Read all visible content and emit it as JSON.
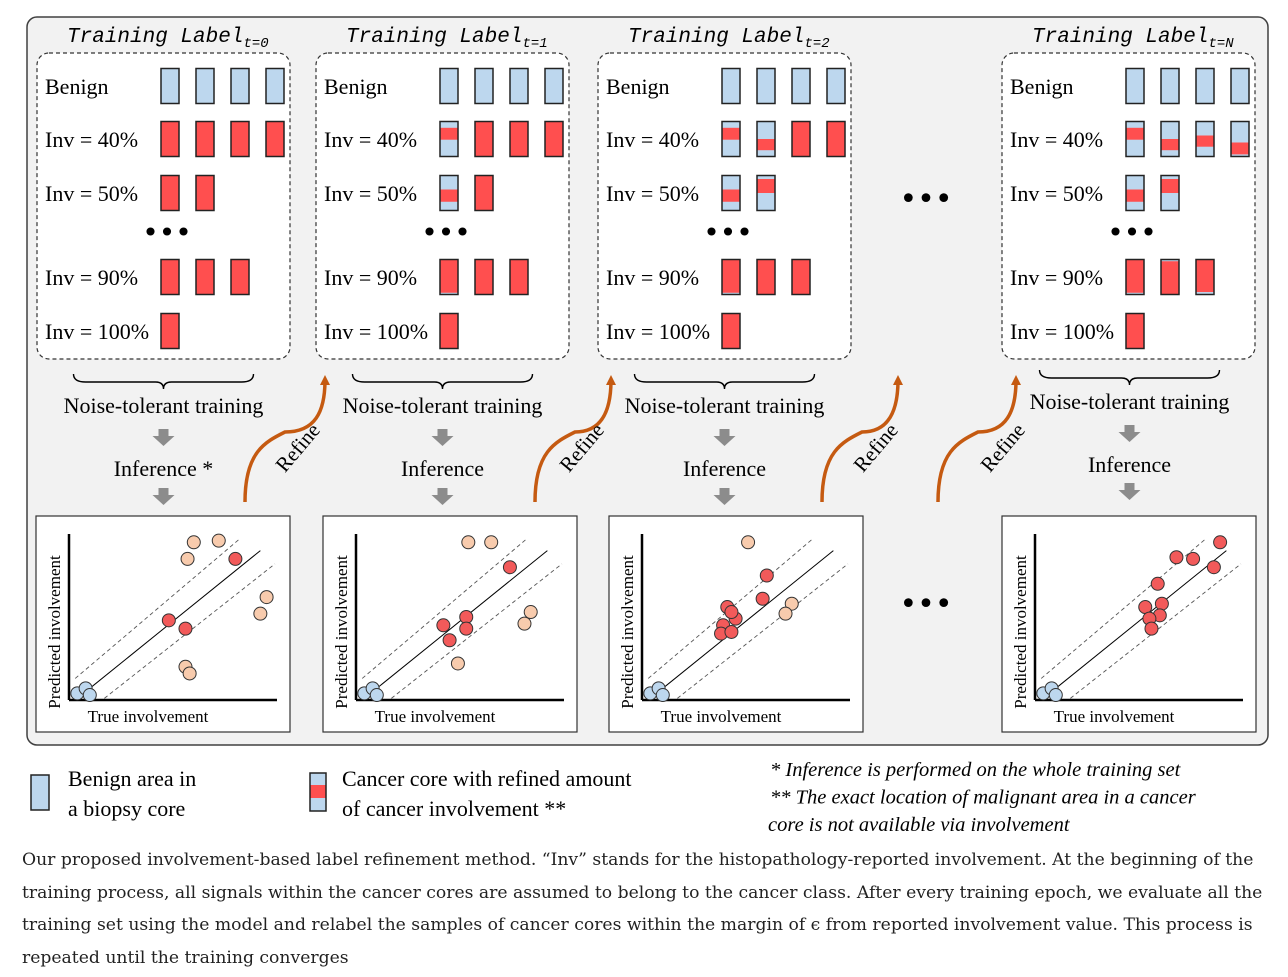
{
  "panels": [
    {
      "title": "Training Label",
      "title_sub": "t=0",
      "rows": [
        {
          "label": "Benign",
          "blocks": [
            [
              "b"
            ],
            [
              "b"
            ],
            [
              "b"
            ],
            [
              "b"
            ]
          ]
        },
        {
          "label": "Inv = 40%",
          "blocks": [
            [
              "r"
            ],
            [
              "r"
            ],
            [
              "r"
            ],
            [
              "r"
            ]
          ]
        },
        {
          "label": "Inv = 50%",
          "blocks": [
            [
              "r"
            ],
            [
              "r"
            ]
          ]
        },
        {
          "label": "dots"
        },
        {
          "label": "Inv = 90%",
          "blocks": [
            [
              "r"
            ],
            [
              "r"
            ],
            [
              "r"
            ]
          ]
        },
        {
          "label": "Inv = 100%",
          "blocks": [
            [
              "r"
            ]
          ]
        }
      ],
      "training": "Noise-tolerant training",
      "inference": "Inference *",
      "refine": "Refine",
      "plot": {
        "xlabel": "True involvement",
        "ylabel": "Predicted involvement",
        "benign": [
          [
            0.04,
            0.04
          ],
          [
            0.08,
            0.07
          ],
          [
            0.1,
            0.03
          ]
        ],
        "red": [
          [
            0.8,
            0.85
          ],
          [
            0.48,
            0.48
          ],
          [
            0.56,
            0.43
          ]
        ],
        "noisy": [
          [
            0.6,
            0.95
          ],
          [
            0.72,
            0.96
          ],
          [
            0.57,
            0.85
          ],
          [
            0.95,
            0.62
          ],
          [
            0.92,
            0.52
          ],
          [
            0.56,
            0.2
          ],
          [
            0.58,
            0.16
          ]
        ]
      }
    },
    {
      "title": "Training Label",
      "title_sub": "t=1",
      "rows": [
        {
          "label": "Benign",
          "blocks": [
            [
              "b"
            ],
            [
              "b"
            ],
            [
              "b"
            ],
            [
              "b"
            ]
          ]
        },
        {
          "label": "Inv = 40%",
          "blocks": [
            [
              "s",
              0.18,
              0.52
            ],
            [
              "r"
            ],
            [
              "r"
            ],
            [
              "r"
            ]
          ]
        },
        {
          "label": "Inv = 50%",
          "blocks": [
            [
              "s",
              0.4,
              0.75
            ],
            [
              "r"
            ]
          ]
        },
        {
          "label": "dots"
        },
        {
          "label": "Inv = 90%",
          "blocks": [
            [
              "s",
              0.0,
              0.95
            ],
            [
              "r"
            ],
            [
              "r"
            ]
          ]
        },
        {
          "label": "Inv = 100%",
          "blocks": [
            [
              "r"
            ]
          ]
        }
      ],
      "training": "Noise-tolerant training",
      "inference": "Inference",
      "refine": "Refine",
      "plot": {
        "xlabel": "True involvement",
        "ylabel": "Predicted involvement",
        "benign": [
          [
            0.04,
            0.04
          ],
          [
            0.08,
            0.07
          ],
          [
            0.1,
            0.03
          ]
        ],
        "red": [
          [
            0.74,
            0.8
          ],
          [
            0.53,
            0.5
          ],
          [
            0.42,
            0.45
          ],
          [
            0.53,
            0.43
          ],
          [
            0.45,
            0.36
          ]
        ],
        "noisy": [
          [
            0.54,
            0.95
          ],
          [
            0.65,
            0.95
          ],
          [
            0.84,
            0.53
          ],
          [
            0.81,
            0.46
          ],
          [
            0.49,
            0.22
          ]
        ]
      }
    },
    {
      "title": "Training Label",
      "title_sub": "t=2",
      "rows": [
        {
          "label": "Benign",
          "blocks": [
            [
              "b"
            ],
            [
              "b"
            ],
            [
              "b"
            ],
            [
              "b"
            ]
          ]
        },
        {
          "label": "Inv = 40%",
          "blocks": [
            [
              "s",
              0.18,
              0.52
            ],
            [
              "s",
              0.5,
              0.82
            ],
            [
              "r"
            ],
            [
              "r"
            ]
          ]
        },
        {
          "label": "Inv = 50%",
          "blocks": [
            [
              "s",
              0.4,
              0.75
            ],
            [
              "s",
              0.1,
              0.5
            ]
          ]
        },
        {
          "label": "dots"
        },
        {
          "label": "Inv = 90%",
          "blocks": [
            [
              "s",
              0.0,
              0.95
            ],
            [
              "r"
            ],
            [
              "r"
            ]
          ]
        },
        {
          "label": "Inv = 100%",
          "blocks": [
            [
              "r"
            ]
          ]
        }
      ],
      "training": "Noise-tolerant training",
      "inference": "Inference",
      "refine": "Refine",
      "plot": {
        "xlabel": "True involvement",
        "ylabel": "Predicted involvement",
        "benign": [
          [
            0.04,
            0.04
          ],
          [
            0.08,
            0.07
          ],
          [
            0.1,
            0.03
          ]
        ],
        "red": [
          [
            0.6,
            0.75
          ],
          [
            0.41,
            0.56
          ],
          [
            0.39,
            0.45
          ],
          [
            0.38,
            0.4
          ],
          [
            0.43,
            0.41
          ],
          [
            0.45,
            0.49
          ],
          [
            0.43,
            0.53
          ],
          [
            0.58,
            0.61
          ]
        ],
        "noisy": [
          [
            0.51,
            0.95
          ],
          [
            0.72,
            0.58
          ],
          [
            0.69,
            0.52
          ]
        ]
      }
    },
    {
      "title": "Training Label",
      "title_sub": "t=N",
      "rows": [
        {
          "label": "Benign",
          "blocks": [
            [
              "b"
            ],
            [
              "b"
            ],
            [
              "b"
            ],
            [
              "b"
            ]
          ]
        },
        {
          "label": "Inv = 40%",
          "blocks": [
            [
              "s",
              0.18,
              0.52
            ],
            [
              "s",
              0.5,
              0.82
            ],
            [
              "s",
              0.4,
              0.72
            ],
            [
              "s",
              0.6,
              0.94
            ]
          ]
        },
        {
          "label": "Inv = 50%",
          "blocks": [
            [
              "s",
              0.4,
              0.75
            ],
            [
              "s",
              0.1,
              0.5
            ]
          ]
        },
        {
          "label": "dots"
        },
        {
          "label": "Inv = 90%",
          "blocks": [
            [
              "s",
              0.0,
              0.95
            ],
            [
              "s",
              0.05,
              1.0
            ],
            [
              "s",
              0.0,
              0.93
            ]
          ]
        },
        {
          "label": "Inv = 100%",
          "blocks": [
            [
              "r"
            ]
          ]
        }
      ],
      "training": "Noise-tolerant training",
      "inference": "Inference",
      "refine": null,
      "plot": {
        "xlabel": "True involvement",
        "ylabel": "Predicted involvement",
        "benign": [
          [
            0.04,
            0.04
          ],
          [
            0.08,
            0.07
          ],
          [
            0.1,
            0.03
          ]
        ],
        "red": [
          [
            0.89,
            0.95
          ],
          [
            0.76,
            0.85
          ],
          [
            0.86,
            0.8
          ],
          [
            0.68,
            0.86
          ],
          [
            0.59,
            0.7
          ],
          [
            0.53,
            0.56
          ],
          [
            0.61,
            0.58
          ],
          [
            0.6,
            0.51
          ],
          [
            0.55,
            0.49
          ],
          [
            0.56,
            0.43
          ]
        ],
        "noisy": []
      }
    }
  ],
  "between_refine": "Refine",
  "ellipsis": "•••",
  "legend": {
    "benign": [
      "Benign area in",
      "a biopsy core"
    ],
    "cancer": [
      "Cancer core with refined amount",
      "of cancer involvement **"
    ]
  },
  "footnotes": [
    "* Inference is performed on the whole training set",
    "** The exact location of malignant area in a cancer",
    "core is not available via involvement"
  ],
  "caption": "Our proposed involvement-based label refinement method. “Inv” stands for the histopathology-reported involvement. At the beginning of the training process, all signals within the cancer cores are assumed to belong to the cancer class. After every training epoch, we evaluate all the training set using the model and relabel the samples of cancer cores within the margin of ϵ from reported involvement value. This process is repeated until the training converges",
  "colors": {
    "benign": "#bdd7ee",
    "cancer": "#ff4f4f",
    "cancer_dot": "#f25a5a",
    "noisy_dot": "#f8cbad",
    "refine_arrow": "#c55a11",
    "flow_arrow": "#8c8c8c",
    "panel_bg": "#f2f2f2"
  }
}
